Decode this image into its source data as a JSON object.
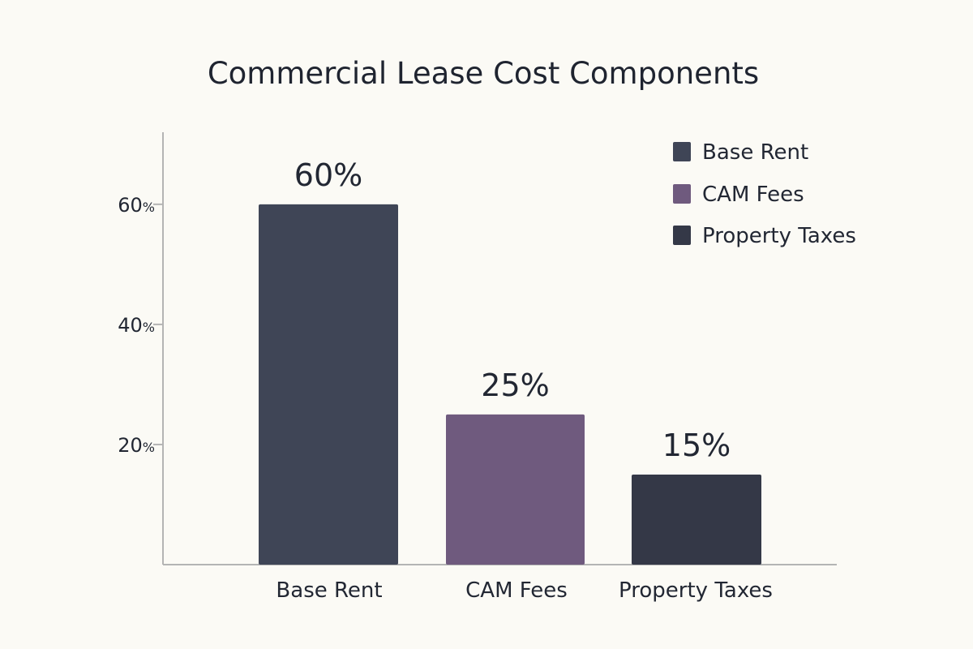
{
  "chart_data": {
    "type": "bar",
    "title": "Commercial Lease Cost Components",
    "categories": [
      "Base Rent",
      "CAM Fees",
      "Property Taxes"
    ],
    "values": [
      60,
      25,
      15
    ],
    "value_labels": [
      "60%",
      "25%",
      "15%"
    ],
    "series": [
      {
        "name": "Base Rent",
        "values": [
          60,
          25,
          15
        ]
      }
    ],
    "bar_colors": [
      "#3f4556",
      "#6f5a7e",
      "#343847"
    ],
    "ylim": [
      0,
      72
    ],
    "yticks": [
      20,
      40,
      60
    ],
    "ytick_labels": [
      "20%",
      "40%",
      "60%"
    ],
    "xlabel": "",
    "ylabel": "",
    "grid": false,
    "legend": {
      "placement": "top-right",
      "items": [
        {
          "label": "Base Rent",
          "color": "#3f4556"
        },
        {
          "label": "CAM Fees",
          "color": "#6f5a7e"
        },
        {
          "label": "Property Taxes",
          "color": "#343847"
        }
      ]
    },
    "axis_color": "#b4b4b4",
    "text_color": "#222733"
  }
}
